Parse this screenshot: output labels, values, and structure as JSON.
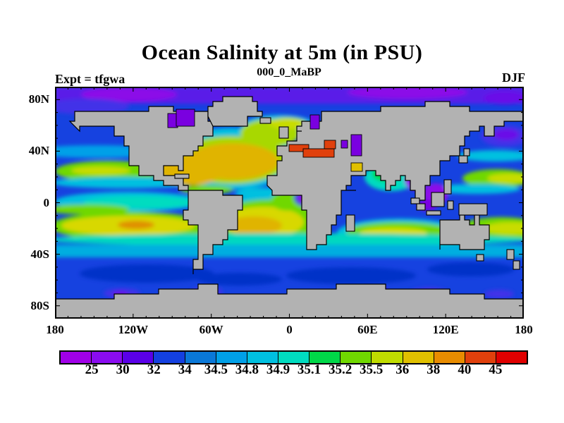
{
  "header": {
    "title": "Ocean Salinity at 5m (in PSU)",
    "subtitle": "000_0_MaBP",
    "experiment_label": "Expt = tfgwa",
    "season_label": "DJF"
  },
  "axes": {
    "lat_ticks": [
      {
        "label": "80N",
        "lat": 80
      },
      {
        "label": "40N",
        "lat": 40
      },
      {
        "label": "0",
        "lat": 0
      },
      {
        "label": "40S",
        "lat": -40
      },
      {
        "label": "80S",
        "lat": -80
      }
    ],
    "lon_ticks": [
      {
        "label": "180",
        "lon": -180
      },
      {
        "label": "120W",
        "lon": -120
      },
      {
        "label": "60W",
        "lon": -60
      },
      {
        "label": "0",
        "lon": 0
      },
      {
        "label": "60E",
        "lon": 60
      },
      {
        "label": "120E",
        "lon": 120
      },
      {
        "label": "180",
        "lon": 180
      }
    ]
  },
  "colorbar": {
    "boundary_labels": [
      "25",
      "30",
      "32",
      "34",
      "34.5",
      "34.8",
      "34.9",
      "35.1",
      "35.2",
      "35.5",
      "36",
      "38",
      "40",
      "45"
    ],
    "segment_colors": [
      "#A000E8",
      "#8A0CF0",
      "#5A00E8",
      "#1440E0",
      "#0A78D8",
      "#00A0E8",
      "#00C0E0",
      "#00DCC0",
      "#00D848",
      "#70D800",
      "#C0DC00",
      "#E0C000",
      "#E88C00",
      "#E0400C",
      "#E00000"
    ]
  },
  "map_colors": {
    "land": "#B2B2B2",
    "coastline": "#000000",
    "ocean_base": "#1642E0"
  },
  "chart_data": {
    "type": "heatmap",
    "subtype": "filled_contour_world_map",
    "title": "Ocean Salinity at 5m (in PSU)",
    "subtitle": "000_0_MaBP",
    "experiment": "tfgwa",
    "season": "DJF",
    "units": "PSU",
    "projection": "equirectangular",
    "lon_range": [
      -180,
      180
    ],
    "lat_range": [
      -90,
      90
    ],
    "lat_tick_interval_minor": 10,
    "lon_tick_interval_minor": 10,
    "contour_levels": [
      25,
      30,
      32,
      34,
      34.5,
      34.8,
      34.9,
      35.1,
      35.2,
      35.5,
      36,
      38,
      40,
      45
    ],
    "palette": [
      "#A000E8",
      "#8A0CF0",
      "#5A00E8",
      "#1440E0",
      "#0A78D8",
      "#00A0E8",
      "#00C0E0",
      "#00DCC0",
      "#00D848",
      "#70D800",
      "#C0DC00",
      "#E0C000",
      "#E88C00",
      "#E0400C",
      "#E00000"
    ],
    "land_color": "#B2B2B2",
    "features": [
      {
        "region": "Arctic Ocean band (75N-90N)",
        "salinity_psu": "25-32",
        "color": "violet/purple"
      },
      {
        "region": "North Atlantic subtropical gyre incl. Gulf of Mexico (10N-45N, 80W-10W)",
        "salinity_psu": "36-38",
        "color": "gold maximum"
      },
      {
        "region": "Gulf Stream tongue into Norwegian Sea (45N-65N)",
        "salinity_psu": "35.2-36",
        "color": "green-yellow"
      },
      {
        "region": "Mediterranean / Black Sea blocks",
        "salinity_psu": ">45",
        "color": "red maximum"
      },
      {
        "region": "Hudson Bay, Baltic Sea, Caspian Sea",
        "salinity_psu": "<25-30",
        "color": "purple minima"
      },
      {
        "region": "Bay of Bengal and South China Sea / Indonesian seas",
        "salinity_psu": "<30",
        "color": "purple minima"
      },
      {
        "region": "North Pacific band near 20N (both sides of dateline)",
        "salinity_psu": "35.2-36",
        "color": "green with yellow core"
      },
      {
        "region": "Equatorial East Pacific tongue",
        "salinity_psu": "34.9-35.1",
        "color": "cyan-turquoise"
      },
      {
        "region": "South Pacific subtropical band (10S-28S)",
        "salinity_psu": "35.5-38",
        "color": "yellow with orange core near 130W"
      },
      {
        "region": "South Atlantic subtropical gyre off Brazil",
        "salinity_psu": "35.5-38",
        "color": "yellow with gold core"
      },
      {
        "region": "South Indian Ocean band (15S-30S)",
        "salinity_psu": "35.5-36",
        "color": "green with yellow core"
      },
      {
        "region": "Southern Ocean circumpolar band (35S-50S)",
        "salinity_psu": "34.5-34.9",
        "color": "cyan"
      },
      {
        "region": "Subpolar Southern Ocean (50S-65S)",
        "salinity_psu": "34",
        "color": "blue with dark-blue patches"
      },
      {
        "region": "Antarctic coastal spots",
        "salinity_psu": "<32",
        "color": "small purple patches"
      },
      {
        "region": "Persian Gulf",
        "salinity_psu": "36-38",
        "color": "yellow patch"
      },
      {
        "region": "NW Pacific east of Kamchatka",
        "salinity_psu": "30-32",
        "color": "violet patch"
      }
    ]
  }
}
